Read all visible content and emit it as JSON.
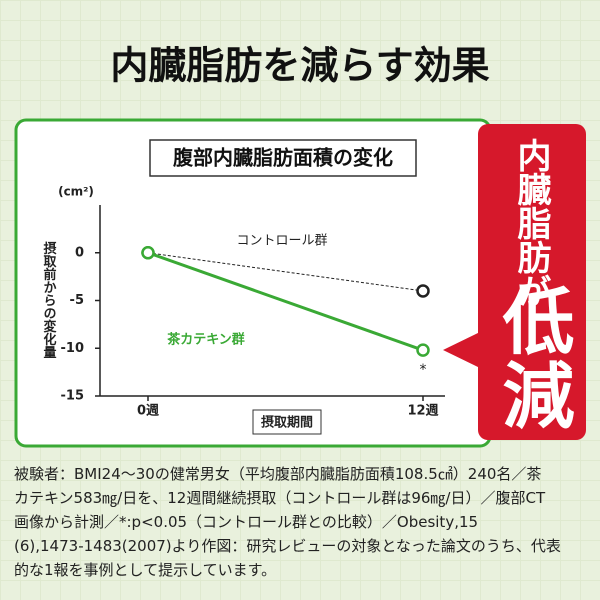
{
  "header": {
    "title": "内臓脂肪を減らす効果"
  },
  "callout": {
    "line1": "内臓脂肪が",
    "line2": "低減"
  },
  "chart_data": {
    "type": "line",
    "title": "腹部内臓脂肪面積の変化",
    "unit": "(cm²)",
    "y_label": "摂取前からの変化量",
    "x_label": "摂取期間",
    "categories": [
      "0週",
      "12週"
    ],
    "series": [
      {
        "name": "コントロール群",
        "color": "#222222",
        "style": "dashed",
        "values": [
          0,
          -4
        ]
      },
      {
        "name": "茶カテキン群",
        "color": "#3aa935",
        "style": "solid",
        "values": [
          0,
          -10.2
        ]
      }
    ],
    "annotation": "*",
    "ylim": [
      -15,
      5
    ],
    "yticks": [
      0,
      -5,
      -10,
      -15
    ]
  },
  "footnote": {
    "lines": [
      "被験者：BMI24～30の健常男女（平均腹部内臓脂肪面積108.5㎠）240名／茶",
      "カテキン583㎎/日を、12週間継続摂取（コントロール群は96㎎/日）／腹部CT",
      "画像から計測／*:p<0.05（コントロール群との比較）／Obesity,15",
      "(6),1473-1483(2007)より作図：研究レビューの対象となった論文のうち、代表",
      "的な1報を事例として提示しています。"
    ]
  }
}
